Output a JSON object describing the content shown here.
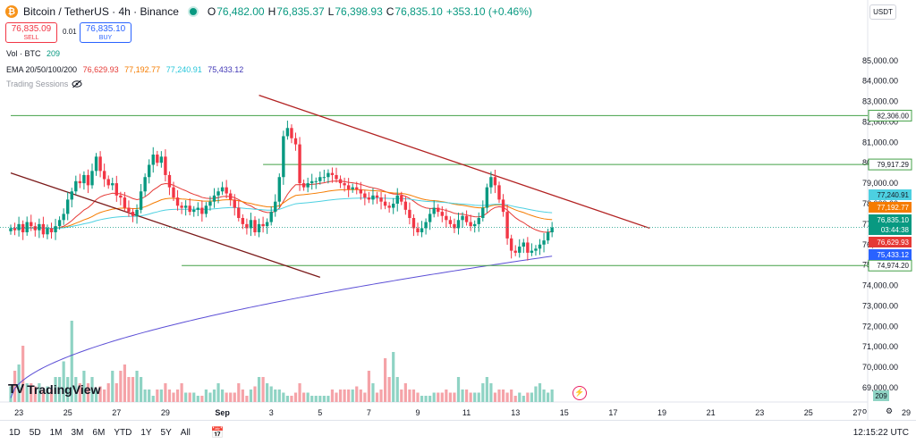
{
  "header": {
    "coin_icon": "bitcoin-icon",
    "coin_glyph": "₿",
    "title": "Bitcoin / TetherUS · 4h · Binance",
    "ohlc": [
      {
        "k": "O",
        "v": "76,482.00"
      },
      {
        "k": "H",
        "v": "76,835.37"
      },
      {
        "k": "L",
        "v": "76,398.93"
      },
      {
        "k": "C",
        "v": "76,835.10"
      }
    ],
    "change": "+353.10 (+0.46%)"
  },
  "trade": {
    "sell_price": "76,835.09",
    "sell_label": "SELL",
    "spread": "0.01",
    "buy_price": "76,835.10",
    "buy_label": "BUY"
  },
  "indicators": {
    "vol_label": "Vol · BTC",
    "vol_value": "209",
    "ema_label": "EMA 20/50/100/200",
    "ema20": "76,629.93",
    "ema50": "77,192.77",
    "ema100": "77,240.91",
    "ema200": "75,433.12",
    "sessions_label": "Trading Sessions"
  },
  "currency_button": "USDT",
  "logo_text": "TradingView",
  "bottom": {
    "ranges": [
      "1D",
      "5D",
      "1M",
      "3M",
      "6M",
      "YTD",
      "1Y",
      "5Y",
      "All"
    ],
    "time": "12:15:22 UTC",
    "log_toggle": "o"
  },
  "colors": {
    "up": "#089981",
    "down": "#f23645",
    "ema20": "#e53935",
    "ema50": "#f57c00",
    "ema100": "#4dd0e1",
    "ema200": "#5c4fd6",
    "hline": "#43a047",
    "trend_red": "#b22222",
    "trend_dark": "#7b1a1a"
  },
  "chart_data": {
    "type": "candlestick",
    "interval": "4h",
    "ylim": [
      68300,
      86300
    ],
    "y_ticks": [
      69000,
      70000,
      71000,
      72000,
      73000,
      74000,
      75000,
      76000,
      77000,
      78000,
      79000,
      80000,
      81000,
      82000,
      83000,
      84000,
      85000
    ],
    "y_tick_labels": [
      "69,000.00",
      "70,000.00",
      "71,000.00",
      "72,000.00",
      "73,000.00",
      "74,000.00",
      "75,000.00",
      "76,000.00",
      "77,000.00",
      "78,000.00",
      "79,000.00",
      "80,000.00",
      "81,000.00",
      "82,000.00",
      "83,000.00",
      "84,000.00",
      "85,000.00"
    ],
    "x_tick_labels": [
      "23",
      "25",
      "27",
      "29",
      "Sep",
      "3",
      "5",
      "7",
      "9",
      "11",
      "13",
      "15",
      "17",
      "19",
      "21",
      "23",
      "25",
      "27",
      "29"
    ],
    "x_tick_bars": [
      2,
      14,
      26,
      38,
      52,
      64,
      76,
      88,
      100,
      112,
      124,
      136,
      148,
      160,
      172,
      184,
      196,
      208,
      220
    ],
    "price_path": [
      76800,
      76700,
      77000,
      76600,
      77100,
      76900,
      76700,
      77000,
      76500,
      76800,
      76600,
      76900,
      77200,
      77500,
      78200,
      78600,
      79100,
      79000,
      79400,
      78900,
      79600,
      80300,
      79600,
      79200,
      78900,
      79000,
      78400,
      78300,
      77800,
      77600,
      77400,
      77700,
      78600,
      79300,
      79900,
      80400,
      80000,
      80300,
      79400,
      78800,
      78300,
      77900,
      77800,
      77900,
      77600,
      77700,
      77800,
      77500,
      77900,
      78100,
      78400,
      78600,
      78800,
      78500,
      78200,
      77800,
      77300,
      77000,
      76800,
      77200,
      76600,
      77000,
      76900,
      77100,
      77600,
      78100,
      79300,
      81300,
      81700,
      81200,
      80900,
      79000,
      78800,
      79000,
      79100,
      79100,
      79300,
      79300,
      79500,
      79400,
      79200,
      79000,
      78900,
      78700,
      78800,
      78700,
      78500,
      78300,
      78200,
      78400,
      78300,
      78100,
      77900,
      77800,
      78000,
      78400,
      78100,
      77700,
      77300,
      76800,
      76600,
      76800,
      77100,
      77500,
      77800,
      77600,
      77400,
      77200,
      77000,
      76800,
      77200,
      77400,
      77100,
      76900,
      77000,
      77300,
      77800,
      78800,
      79300,
      78900,
      78200,
      77600,
      76300,
      75700,
      75600,
      75900,
      76100,
      75600,
      75700,
      75800,
      76000,
      76200,
      76600,
      76835
    ],
    "volumes": [
      2.5,
      5,
      6,
      9,
      3,
      3,
      2.5,
      3,
      2,
      2.5,
      2,
      4,
      4,
      6.5,
      4,
      13,
      4,
      3,
      5,
      3,
      4,
      2,
      2.5,
      2,
      3,
      5,
      3,
      5,
      6,
      4,
      4,
      5,
      4,
      2,
      2,
      1,
      2,
      2,
      3,
      2,
      1.5,
      2,
      3,
      1.5,
      1.5,
      1.5,
      1,
      1,
      2,
      1.5,
      2,
      3,
      2,
      1.5,
      1.5,
      1.5,
      3,
      2,
      1,
      2,
      2.5,
      4,
      4,
      3,
      2.5,
      2,
      2,
      1.5,
      1,
      1,
      1.5,
      3,
      1.5,
      1.5,
      1,
      1,
      1,
      1,
      1,
      2,
      1.5,
      2,
      2,
      2,
      2,
      2.5,
      2,
      1.5,
      5,
      3,
      1.5,
      2,
      7,
      4,
      8,
      4,
      2,
      3,
      2,
      2,
      1.5,
      1,
      1,
      1,
      1.5,
      1.5,
      1.5,
      2,
      1.5,
      1.5,
      4,
      2,
      2,
      1.5,
      1.5,
      1.5,
      3,
      4,
      3,
      1.5,
      2,
      2,
      1.5,
      2,
      1,
      1.5,
      1,
      1.5,
      1.5,
      2.5,
      3,
      2,
      1.5,
      2,
      1,
      1,
      1.5,
      2.5,
      7.5,
      3.5,
      3.5,
      1.5,
      1,
      2,
      1.5,
      2,
      1,
      1.5,
      1,
      2.5,
      1.5,
      4,
      4,
      6,
      4,
      4,
      5,
      2,
      2,
      2,
      2,
      3,
      2,
      1.5,
      2
    ],
    "horizontal_levels": [
      {
        "price": 82306.0,
        "label": "82,306.00",
        "from_bar": 0
      },
      {
        "price": 79917.29,
        "label": "79,917.29",
        "from_bar": 62
      },
      {
        "price": 74974.2,
        "label": "74,974.20",
        "from_bar": 42
      }
    ],
    "trendlines": [
      {
        "name": "descending-resistance",
        "from": [
          61,
          83300
        ],
        "to": [
          157,
          76800
        ]
      },
      {
        "name": "older-descending-line",
        "from": [
          0,
          79500
        ],
        "to": [
          76,
          74400
        ]
      }
    ],
    "price_labels": [
      {
        "label": "77,240.91",
        "sub": "",
        "price": 77240.91,
        "color": "#4dd0e1",
        "text_color": "#131722"
      },
      {
        "label": "77,192.77",
        "sub": "",
        "price": 77192.77,
        "color": "#f57c00",
        "text_color": "#ffffff"
      },
      {
        "label": "76,835.10",
        "sub": "03:44:38",
        "price": 76835.1,
        "color": "#089981",
        "text_color": "#ffffff"
      },
      {
        "label": "76,629.93",
        "sub": "",
        "price": 76629.93,
        "color": "#e53935",
        "text_color": "#ffffff"
      },
      {
        "label": "75,433.12",
        "sub": "",
        "price": 75433.12,
        "color": "#2962ff",
        "text_color": "#ffffff"
      }
    ],
    "volume_badge": "209"
  }
}
